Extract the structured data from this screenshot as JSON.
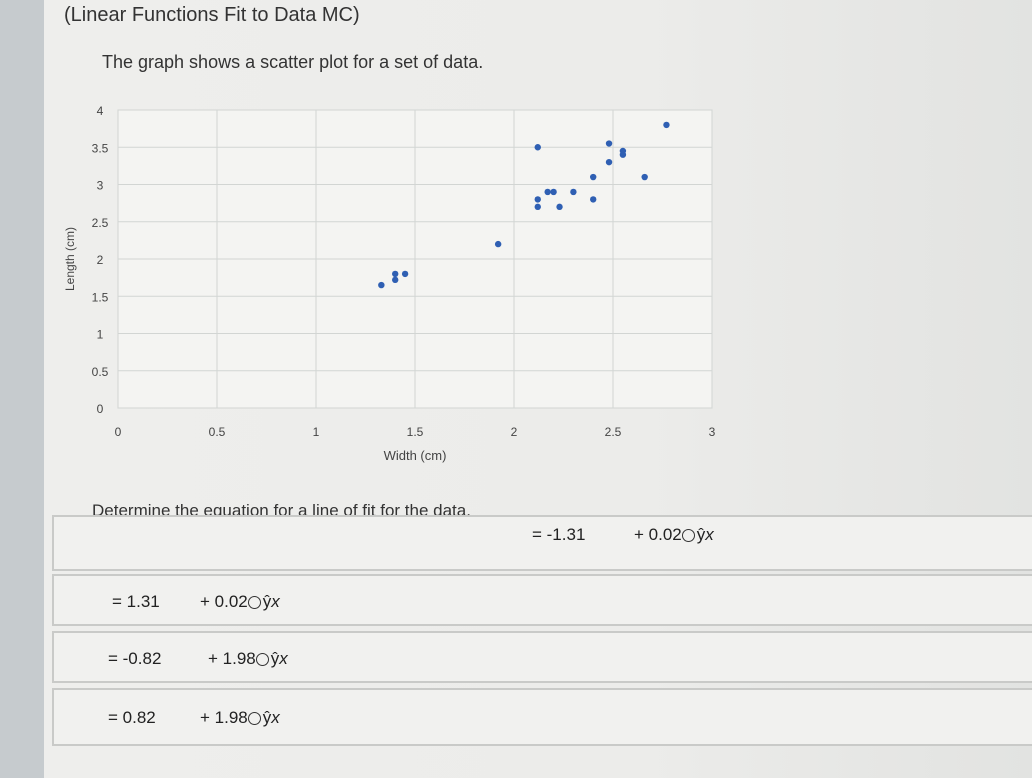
{
  "title": "(Linear Functions Fit to Data MC)",
  "prompt": "The graph shows a scatter plot for a set of data.",
  "question": "Determine the equation for a line of fit for the data.",
  "options": [
    {
      "intercept": "= -1.31",
      "slope": "+ 0.02",
      "var": "x",
      "hat": "ŷ"
    },
    {
      "intercept": "= 1.31",
      "slope": "+ 0.02",
      "var": "x",
      "hat": "ŷ"
    },
    {
      "intercept": "= -0.82",
      "slope": "+ 1.98",
      "var": "x",
      "hat": "ŷ"
    },
    {
      "intercept": "= 0.82",
      "slope": "+ 1.98",
      "var": "x",
      "hat": "ŷ"
    }
  ],
  "chart_data": {
    "type": "scatter",
    "xlabel": "Width (cm)",
    "ylabel": "Length (cm)",
    "xlim": [
      0,
      3
    ],
    "ylim": [
      0,
      4
    ],
    "xticks": [
      "0",
      "0.5",
      "1",
      "1.5",
      "2",
      "2.5",
      "3"
    ],
    "yticks": [
      "0",
      "0.5",
      "1",
      "1.5",
      "2",
      "2.5",
      "3",
      "3.5",
      "4"
    ],
    "point_color": "#2f5fb3",
    "grid": true,
    "points": [
      [
        1.33,
        1.65
      ],
      [
        1.4,
        1.8
      ],
      [
        1.4,
        1.72
      ],
      [
        1.45,
        1.8
      ],
      [
        1.92,
        2.2
      ],
      [
        2.12,
        3.5
      ],
      [
        2.12,
        2.7
      ],
      [
        2.12,
        2.8
      ],
      [
        2.17,
        2.9
      ],
      [
        2.2,
        2.9
      ],
      [
        2.23,
        2.7
      ],
      [
        2.3,
        2.9
      ],
      [
        2.4,
        2.8
      ],
      [
        2.4,
        3.1
      ],
      [
        2.48,
        3.55
      ],
      [
        2.48,
        3.3
      ],
      [
        2.55,
        3.45
      ],
      [
        2.55,
        3.4
      ],
      [
        2.66,
        3.1
      ],
      [
        2.77,
        3.8
      ]
    ]
  }
}
